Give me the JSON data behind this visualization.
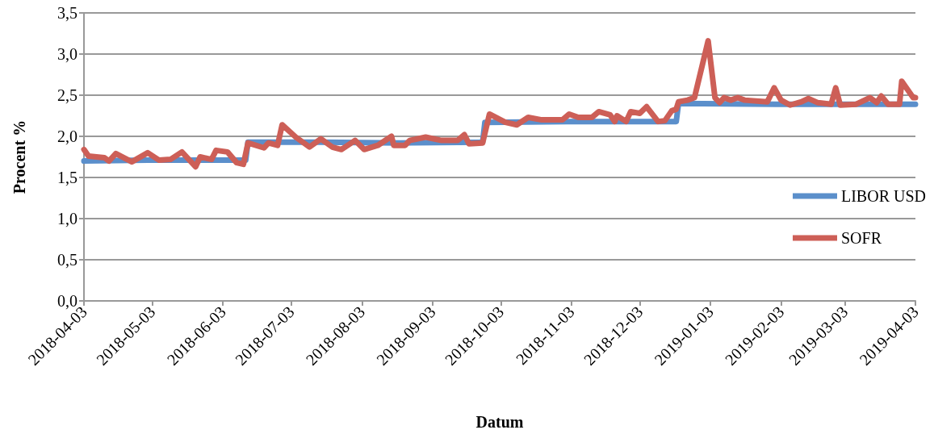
{
  "chart_data": {
    "type": "line",
    "xlabel": "Datum",
    "ylabel": "Procent %",
    "xlim": [
      "2018-04-03",
      "2019-04-03"
    ],
    "xticks": [
      "2018-04-03",
      "2018-05-03",
      "2018-06-03",
      "2018-07-03",
      "2018-08-03",
      "2018-09-03",
      "2018-10-03",
      "2018-11-03",
      "2018-12-03",
      "2019-01-03",
      "2019-02-03",
      "2019-03-03",
      "2019-04-03"
    ],
    "ylim": [
      0,
      3.5
    ],
    "yticks": [
      {
        "value": 0,
        "label": "0,0"
      },
      {
        "value": 0.5,
        "label": "0,5"
      },
      {
        "value": 1,
        "label": "1,0"
      },
      {
        "value": 1.5,
        "label": "1,5"
      },
      {
        "value": 2,
        "label": "2,0"
      },
      {
        "value": 2.5,
        "label": "2,5"
      },
      {
        "value": 3,
        "label": "3,0"
      },
      {
        "value": 3.5,
        "label": "3,5"
      }
    ],
    "grid": "y",
    "legend": "right",
    "marker": "none",
    "line_style": "solid",
    "series": [
      {
        "name": "LIBOR USD",
        "color": "#5b8fcb",
        "x": [
          "2018-04-03",
          "2018-05-01",
          "2018-06-13",
          "2018-06-14",
          "2018-07-16",
          "2018-08-20",
          "2018-09-25",
          "2018-09-26",
          "2018-11-01",
          "2018-12-19",
          "2018-12-20",
          "2019-02-01",
          "2019-04-03"
        ],
        "values": [
          1.7,
          1.71,
          1.71,
          1.93,
          1.93,
          1.92,
          1.93,
          2.17,
          2.18,
          2.18,
          2.4,
          2.39,
          2.39
        ]
      },
      {
        "name": "SOFR",
        "color": "#cd5f57",
        "x": [
          "2018-04-03",
          "2018-04-05",
          "2018-04-12",
          "2018-04-14",
          "2018-04-17",
          "2018-04-24",
          "2018-05-01",
          "2018-05-06",
          "2018-05-11",
          "2018-05-16",
          "2018-05-22",
          "2018-05-24",
          "2018-05-29",
          "2018-05-31",
          "2018-06-05",
          "2018-06-09",
          "2018-06-12",
          "2018-06-14",
          "2018-06-21",
          "2018-06-23",
          "2018-06-27",
          "2018-06-29",
          "2018-07-05",
          "2018-07-11",
          "2018-07-16",
          "2018-07-21",
          "2018-07-25",
          "2018-07-31",
          "2018-08-04",
          "2018-08-10",
          "2018-08-16",
          "2018-08-17",
          "2018-08-22",
          "2018-08-24",
          "2018-08-31",
          "2018-09-07",
          "2018-09-14",
          "2018-09-17",
          "2018-09-19",
          "2018-09-25",
          "2018-09-28",
          "2018-10-05",
          "2018-10-10",
          "2018-10-15",
          "2018-10-21",
          "2018-10-30",
          "2018-11-02",
          "2018-11-06",
          "2018-11-12",
          "2018-11-15",
          "2018-11-20",
          "2018-11-22",
          "2018-11-23",
          "2018-11-27",
          "2018-11-29",
          "2018-12-03",
          "2018-12-06",
          "2018-12-11",
          "2018-12-14",
          "2018-12-17",
          "2018-12-19",
          "2018-12-20",
          "2018-12-24",
          "2018-12-27",
          "2019-01-02",
          "2019-01-05",
          "2019-01-07",
          "2019-01-09",
          "2019-01-12",
          "2019-01-15",
          "2019-01-18",
          "2019-01-28",
          "2019-01-31",
          "2019-02-03",
          "2019-02-07",
          "2019-02-12",
          "2019-02-15",
          "2019-02-19",
          "2019-02-25",
          "2019-02-27",
          "2019-03-01",
          "2019-03-08",
          "2019-03-14",
          "2019-03-17",
          "2019-03-19",
          "2019-03-22",
          "2019-03-27",
          "2019-03-28",
          "2019-04-02",
          "2019-04-03"
        ],
        "values": [
          1.84,
          1.76,
          1.74,
          1.7,
          1.79,
          1.69,
          1.8,
          1.71,
          1.72,
          1.81,
          1.63,
          1.75,
          1.72,
          1.83,
          1.81,
          1.68,
          1.66,
          1.92,
          1.86,
          1.92,
          1.89,
          2.14,
          1.99,
          1.87,
          1.97,
          1.87,
          1.84,
          1.95,
          1.84,
          1.89,
          2.0,
          1.89,
          1.89,
          1.95,
          1.99,
          1.95,
          1.95,
          2.02,
          1.91,
          1.92,
          2.27,
          2.17,
          2.14,
          2.23,
          2.2,
          2.2,
          2.27,
          2.23,
          2.23,
          2.3,
          2.26,
          2.18,
          2.25,
          2.18,
          2.3,
          2.28,
          2.36,
          2.18,
          2.19,
          2.31,
          2.33,
          2.42,
          2.44,
          2.47,
          3.16,
          2.47,
          2.41,
          2.47,
          2.44,
          2.47,
          2.44,
          2.42,
          2.59,
          2.44,
          2.38,
          2.42,
          2.46,
          2.41,
          2.39,
          2.59,
          2.38,
          2.39,
          2.47,
          2.41,
          2.49,
          2.39,
          2.39,
          2.67,
          2.47,
          2.47
        ]
      }
    ]
  }
}
